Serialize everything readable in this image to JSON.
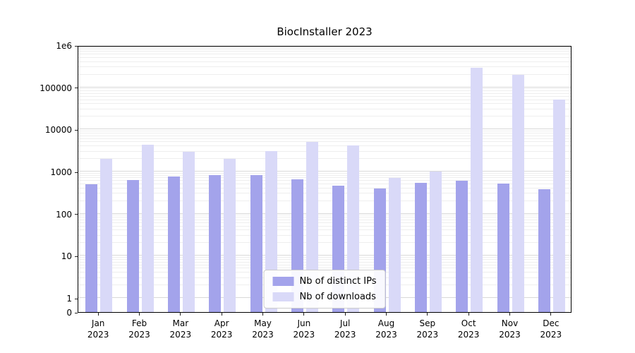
{
  "title": "BiocInstaller 2023",
  "chart_data": {
    "type": "bar",
    "title": "BiocInstaller 2023",
    "yscale": "symlog",
    "ylim": [
      0,
      1000000
    ],
    "grid": true,
    "legend_position": "lower center",
    "categories": [
      "Jan",
      "Feb",
      "Mar",
      "Apr",
      "May",
      "Jun",
      "Jul",
      "Aug",
      "Sep",
      "Oct",
      "Nov",
      "Dec"
    ],
    "year_label": "2023",
    "yticks": [
      0,
      1,
      10,
      100,
      1000,
      10000,
      100000,
      1000000
    ],
    "ytick_labels": [
      "0",
      "1",
      "10",
      "100",
      "1000",
      "10000",
      "100000",
      "1e6"
    ],
    "series": [
      {
        "name": "Nb of distinct IPs",
        "color": "#a3a3eb",
        "values": [
          500,
          620,
          750,
          830,
          830,
          650,
          470,
          390,
          540,
          600,
          520,
          380
        ]
      },
      {
        "name": "Nb of downloads",
        "color": "#d9d9f8",
        "values": [
          2000,
          4400,
          3000,
          2000,
          3100,
          5000,
          4200,
          720,
          1000,
          290000,
          200000,
          52000
        ]
      }
    ]
  }
}
